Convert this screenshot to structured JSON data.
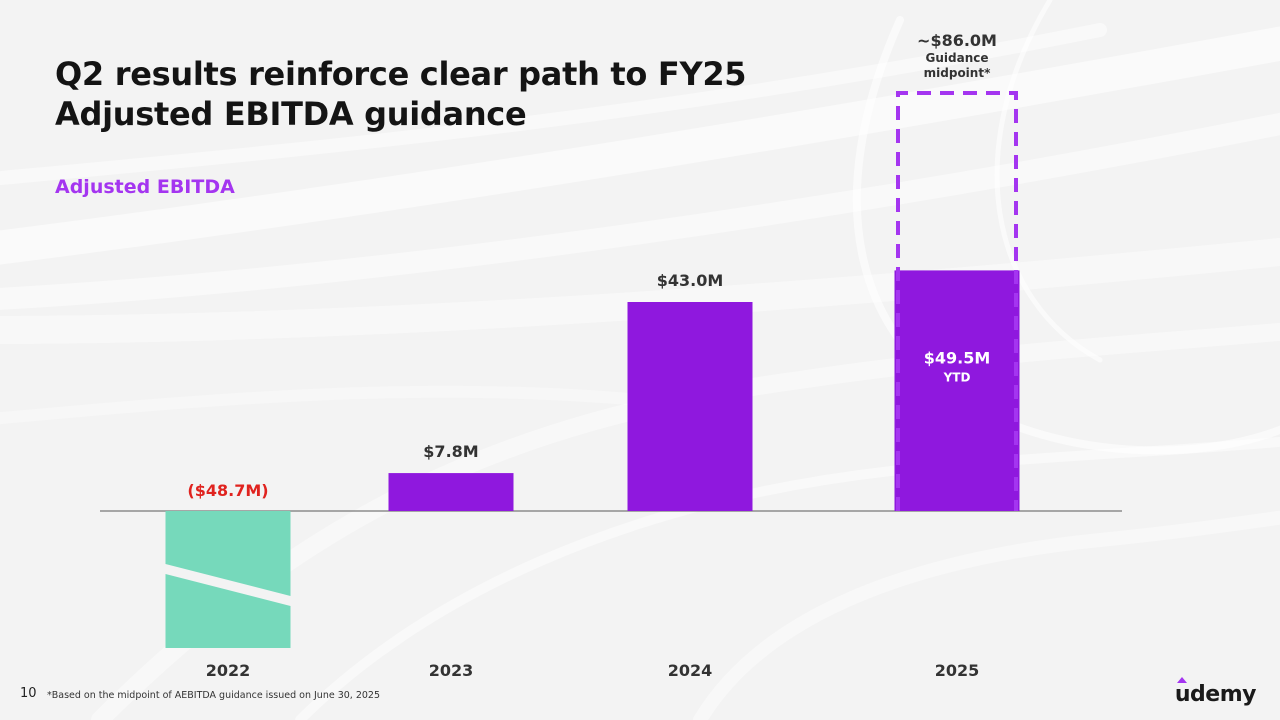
{
  "slide": {
    "title_line1": "Q2 results reinforce clear path to FY25",
    "title_line2": "Adjusted EBITDA guidance",
    "subtitle": "Adjusted EBITDA",
    "page_number": "10",
    "footnote": "*Based on the midpoint of AEBITDA guidance issued on June 30, 2025",
    "logo_text": "udemy"
  },
  "colors": {
    "purple": "#8f18de",
    "purple_accent": "#a435f0",
    "negative_bar": "#76d9bb",
    "negative_label": "#e0231f",
    "axis": "#777777",
    "label": "#333333"
  },
  "chart_data": {
    "type": "bar",
    "title": "Adjusted EBITDA",
    "categories": [
      "2022",
      "2023",
      "2024",
      "2025"
    ],
    "series": [
      {
        "name": "Adjusted EBITDA",
        "values": [
          -48.7,
          7.8,
          43.0,
          49.5
        ],
        "labels": [
          "($48.7M)",
          "$7.8M",
          "$43.0M",
          "$49.5M"
        ],
        "sublabels": [
          "",
          "",
          "",
          "YTD"
        ]
      },
      {
        "name": "FY25 Guidance midpoint",
        "values": [
          null,
          null,
          null,
          86.0
        ],
        "labels": [
          "",
          "",
          "",
          "~$86.0M"
        ],
        "sublabels": [
          "",
          "",
          "",
          "Guidance midpoint*"
        ],
        "style": "dashed-outline"
      }
    ],
    "ylim": [
      -48.7,
      86.0
    ],
    "axis_break": "2022 bar truncated with a diagonal break",
    "grid": false,
    "legend": "none"
  }
}
